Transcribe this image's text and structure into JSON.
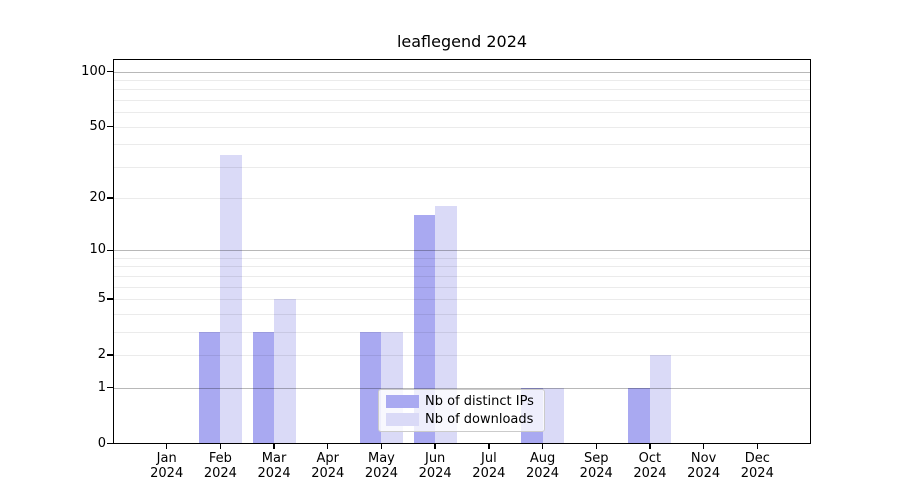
{
  "figure": {
    "background": "#ffffff",
    "text_color": "#000000",
    "axis_color": "#000000"
  },
  "chart_data": {
    "type": "bar",
    "title": "leaflegend 2024",
    "xlabel": "",
    "ylabel": "",
    "yscale": "log1p",
    "ylim": [
      0,
      117
    ],
    "grid": true,
    "legend_position": "lower-center",
    "year": "2024",
    "categories": [
      "Jan",
      "Feb",
      "Mar",
      "Apr",
      "May",
      "Jun",
      "Jul",
      "Aug",
      "Sep",
      "Oct",
      "Nov",
      "Dec"
    ],
    "series": [
      {
        "name": "Nb of distinct IPs",
        "color": "#a9a9f1",
        "values": [
          0,
          3,
          3,
          0,
          3,
          16,
          0,
          1,
          0,
          1,
          0,
          0
        ]
      },
      {
        "name": "Nb of downloads",
        "color": "#dadaf7",
        "values": [
          0,
          35,
          5,
          0,
          3,
          18,
          0,
          1,
          0,
          2,
          0,
          0
        ]
      }
    ],
    "yticks": [
      {
        "value": 0,
        "label": "0"
      },
      {
        "value": 1,
        "label": "1"
      },
      {
        "value": 2,
        "label": "2"
      },
      {
        "value": 5,
        "label": "5"
      },
      {
        "value": 10,
        "label": "10"
      },
      {
        "value": 20,
        "label": "20"
      },
      {
        "value": 50,
        "label": "50"
      },
      {
        "value": 100,
        "label": "100"
      }
    ],
    "major_gridlines": [
      1,
      10,
      100
    ],
    "minor_gridlines": [
      2,
      3,
      4,
      5,
      6,
      7,
      8,
      9,
      20,
      30,
      40,
      50,
      60,
      70,
      80,
      90
    ],
    "major_grid_color": "rgba(0,0,0,0.28)",
    "minor_grid_color": "rgba(0,0,0,0.08)"
  }
}
